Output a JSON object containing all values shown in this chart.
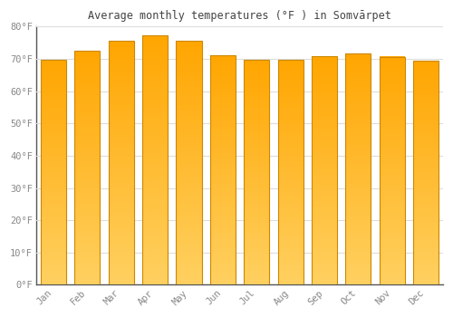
{
  "title": "Average monthly temperatures (°F ) in Somvārpet",
  "months": [
    "Jan",
    "Feb",
    "Mar",
    "Apr",
    "May",
    "Jun",
    "Jul",
    "Aug",
    "Sep",
    "Oct",
    "Nov",
    "Dec"
  ],
  "values": [
    69.8,
    72.5,
    75.7,
    77.4,
    75.6,
    71.2,
    69.8,
    69.6,
    70.9,
    71.8,
    70.7,
    69.4
  ],
  "bar_color_bottom": "#FFD060",
  "bar_color_top": "#FFA500",
  "bar_edge_color": "#CC8800",
  "background_color": "#FFFFFF",
  "plot_bg_color": "#FFFFFF",
  "grid_color": "#DDDDDD",
  "tick_label_color": "#888888",
  "title_color": "#444444",
  "ylim": [
    0,
    80
  ],
  "yticks": [
    0,
    10,
    20,
    30,
    40,
    50,
    60,
    70,
    80
  ],
  "figsize": [
    5.0,
    3.5
  ],
  "dpi": 100
}
